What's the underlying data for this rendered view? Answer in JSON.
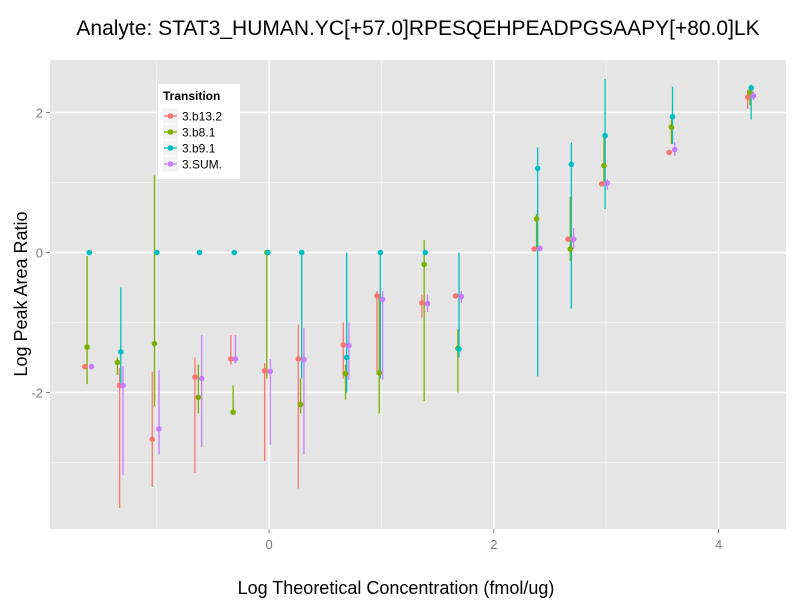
{
  "chart_data": {
    "type": "scatter",
    "title": "Analyte: STAT3_HUMAN.YC[+57.0]RPESQEHPEADPGSAAPY[+80.0]LK",
    "xlabel": "Log Theoretical Concentration (fmol/ug)",
    "ylabel": "Log Peak Area Ratio",
    "xlim": [
      -1.95,
      4.6
    ],
    "ylim": [
      -3.95,
      2.75
    ],
    "xticks": [
      0,
      2,
      4
    ],
    "yticks": [
      -2,
      0,
      2
    ],
    "xtick_labels": [
      "0",
      "2",
      "4"
    ],
    "ytick_labels": [
      "-2",
      "0",
      "2"
    ],
    "grid": true,
    "legend_title": "Transition",
    "legend_position": "top-left",
    "series": [
      {
        "name": "3.b13.2",
        "color": "#F8766D",
        "points": [
          {
            "x": -1.64,
            "y": -1.63
          },
          {
            "x": -1.33,
            "y": -1.9,
            "lo": -3.65,
            "hi": -1.65
          },
          {
            "x": -1.04,
            "y": -2.67,
            "lo": -3.35,
            "hi": -1.7
          },
          {
            "x": -0.66,
            "y": -1.78,
            "lo": -3.15,
            "hi": -1.5
          },
          {
            "x": -0.34,
            "y": -1.52,
            "lo": -1.6,
            "hi": -1.18
          },
          {
            "x": -0.04,
            "y": -1.69,
            "lo": -2.98,
            "hi": -1.58
          },
          {
            "x": 0.26,
            "y": -1.52,
            "lo": -3.37,
            "hi": -1.03
          },
          {
            "x": 0.66,
            "y": -1.32,
            "lo": -1.8,
            "hi": -1.0
          },
          {
            "x": 0.96,
            "y": -0.62,
            "lo": -1.7,
            "hi": -0.55
          },
          {
            "x": 1.36,
            "y": -0.72,
            "lo": -0.93,
            "hi": -0.6
          },
          {
            "x": 1.66,
            "y": -0.62
          },
          {
            "x": 2.36,
            "y": 0.05
          },
          {
            "x": 2.66,
            "y": 0.19
          },
          {
            "x": 2.96,
            "y": 0.98
          },
          {
            "x": 3.56,
            "y": 1.43
          },
          {
            "x": 4.26,
            "y": 2.22,
            "lo": 2.05,
            "hi": 2.33
          }
        ]
      },
      {
        "name": "3.b8.1",
        "color": "#7CAE00",
        "points": [
          {
            "x": -1.62,
            "y": -1.35,
            "lo": -1.88,
            "hi": -0.05
          },
          {
            "x": -1.35,
            "y": -1.57,
            "lo": -1.75,
            "hi": -1.5
          },
          {
            "x": -1.02,
            "y": -1.3,
            "lo": -2.2,
            "hi": 1.1
          },
          {
            "x": -0.63,
            "y": -2.07,
            "lo": -2.3,
            "hi": -1.6
          },
          {
            "x": -0.32,
            "y": -2.28,
            "lo": -2.3,
            "hi": -1.9
          },
          {
            "x": -0.02,
            "y": 0.0,
            "lo": -1.8,
            "hi": 0.0
          },
          {
            "x": 0.28,
            "y": -2.17,
            "lo": -2.3,
            "hi": -1.8
          },
          {
            "x": 0.68,
            "y": -1.73,
            "lo": -2.1,
            "hi": -1.6
          },
          {
            "x": 0.98,
            "y": -1.72,
            "lo": -2.3,
            "hi": -0.6
          },
          {
            "x": 1.38,
            "y": -0.17,
            "lo": -2.12,
            "hi": 0.18
          },
          {
            "x": 1.68,
            "y": -1.37,
            "lo": -2.0,
            "hi": -1.1
          },
          {
            "x": 2.38,
            "y": 0.48,
            "lo": 0.05,
            "hi": 0.55
          },
          {
            "x": 2.68,
            "y": 0.05,
            "lo": -0.12,
            "hi": 0.8
          },
          {
            "x": 2.98,
            "y": 1.24,
            "lo": 1.0,
            "hi": 1.7
          },
          {
            "x": 3.58,
            "y": 1.79,
            "lo": 1.55,
            "hi": 1.9
          },
          {
            "x": 4.28,
            "y": 2.28,
            "lo": 2.1,
            "hi": 2.35
          }
        ]
      },
      {
        "name": "3.b9.1",
        "color": "#00BFC4",
        "points": [
          {
            "x": -1.6,
            "y": 0.0
          },
          {
            "x": -1.32,
            "y": -1.42,
            "lo": -1.9,
            "hi": -0.5
          },
          {
            "x": -1.0,
            "y": 0.0
          },
          {
            "x": -0.62,
            "y": 0.0
          },
          {
            "x": -0.31,
            "y": 0.0
          },
          {
            "x": -0.01,
            "y": 0.0
          },
          {
            "x": 0.29,
            "y": 0.0,
            "lo": -1.8,
            "hi": 0.0
          },
          {
            "x": 0.69,
            "y": -1.5,
            "lo": -2.0,
            "hi": 0.0
          },
          {
            "x": 0.99,
            "y": 0.0,
            "lo": -1.8,
            "hi": 0.0
          },
          {
            "x": 1.39,
            "y": 0.0
          },
          {
            "x": 1.69,
            "y": -1.38,
            "lo": -1.5,
            "hi": 0.0
          },
          {
            "x": 2.39,
            "y": 1.2,
            "lo": -1.77,
            "hi": 1.5
          },
          {
            "x": 2.69,
            "y": 1.26,
            "lo": -0.8,
            "hi": 1.57
          },
          {
            "x": 2.99,
            "y": 1.67,
            "lo": 0.62,
            "hi": 2.48
          },
          {
            "x": 3.59,
            "y": 1.94,
            "lo": 1.55,
            "hi": 2.37
          },
          {
            "x": 4.29,
            "y": 2.35,
            "lo": 1.9,
            "hi": 2.4
          }
        ]
      },
      {
        "name": "3.SUM.",
        "color": "#C77CFF",
        "points": [
          {
            "x": -1.58,
            "y": -1.63
          },
          {
            "x": -1.3,
            "y": -1.9,
            "lo": -3.18,
            "hi": -1.62
          },
          {
            "x": -0.98,
            "y": -2.52,
            "lo": -2.88,
            "hi": -1.68
          },
          {
            "x": -0.6,
            "y": -1.8,
            "lo": -2.78,
            "hi": -1.18
          },
          {
            "x": -0.3,
            "y": -1.52,
            "lo": -1.58,
            "hi": -1.18
          },
          {
            "x": 0.01,
            "y": -1.7,
            "lo": -2.75,
            "hi": -1.52
          },
          {
            "x": 0.31,
            "y": -1.53,
            "lo": -2.88,
            "hi": -1.08
          },
          {
            "x": 0.71,
            "y": -1.33,
            "lo": -1.82,
            "hi": -1.0
          },
          {
            "x": 1.01,
            "y": -0.67,
            "lo": -1.82,
            "hi": -0.55
          },
          {
            "x": 1.41,
            "y": -0.73,
            "lo": -0.85,
            "hi": -0.6
          },
          {
            "x": 1.71,
            "y": -0.63,
            "lo": -0.72,
            "hi": -0.55
          },
          {
            "x": 2.41,
            "y": 0.06
          },
          {
            "x": 2.71,
            "y": 0.19,
            "lo": 0.05,
            "hi": 0.35
          },
          {
            "x": 3.01,
            "y": 0.99,
            "lo": 0.9,
            "hi": 1.05
          },
          {
            "x": 3.61,
            "y": 1.47,
            "lo": 1.38,
            "hi": 1.58
          },
          {
            "x": 4.31,
            "y": 2.24,
            "lo": 2.18,
            "hi": 2.3
          }
        ]
      }
    ]
  }
}
